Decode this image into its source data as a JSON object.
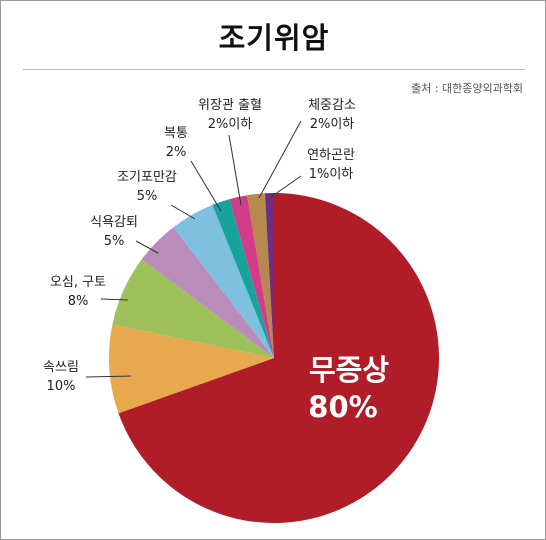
{
  "header": {
    "title": "조기위암",
    "source": "출처 : 대한종양외과학회"
  },
  "chart_data": {
    "type": "pie",
    "title": "조기위암",
    "slices": [
      {
        "name": "무증상",
        "value_label": "80%",
        "value": 80,
        "color": "#b01c27"
      },
      {
        "name": "속쓰림",
        "value_label": "10%",
        "value": 10,
        "color": "#e8a94e"
      },
      {
        "name": "오심, 구토",
        "value_label": "8%",
        "value": 8,
        "color": "#9cc05a"
      },
      {
        "name": "식욕감퇴",
        "value_label": "5%",
        "value": 5,
        "color": "#b98cb9"
      },
      {
        "name": "조기포만감",
        "value_label": "5%",
        "value": 5,
        "color": "#7fbfe0"
      },
      {
        "name": "복통",
        "value_label": "2%",
        "value": 2,
        "color": "#16a39a"
      },
      {
        "name": "위장관 출혈",
        "value_label": "2%이하",
        "value": 2,
        "color": "#d23d8a"
      },
      {
        "name": "체중감소",
        "value_label": "2%이하",
        "value": 2,
        "color": "#b8894f"
      },
      {
        "name": "연하곤란",
        "value_label": "1%이하",
        "value": 1,
        "color": "#6d2c86"
      }
    ]
  }
}
